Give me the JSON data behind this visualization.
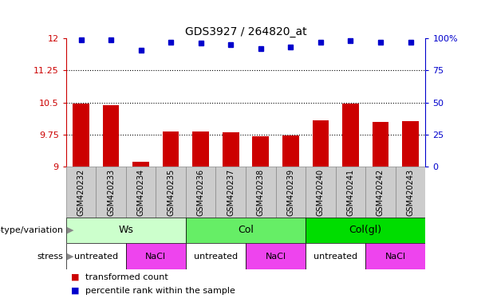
{
  "title": "GDS3927 / 264820_at",
  "samples": [
    "GSM420232",
    "GSM420233",
    "GSM420234",
    "GSM420235",
    "GSM420236",
    "GSM420237",
    "GSM420238",
    "GSM420239",
    "GSM420240",
    "GSM420241",
    "GSM420242",
    "GSM420243"
  ],
  "bar_values": [
    10.47,
    10.43,
    9.12,
    9.82,
    9.82,
    9.8,
    9.72,
    9.73,
    10.08,
    10.47,
    10.05,
    10.06
  ],
  "dot_values": [
    99,
    99,
    91,
    97,
    96,
    95,
    92,
    93,
    97,
    98,
    97,
    97
  ],
  "bar_color": "#cc0000",
  "dot_color": "#0000cc",
  "ylim_left": [
    9.0,
    12.0
  ],
  "ylim_right": [
    0,
    100
  ],
  "yticks_left": [
    9.0,
    9.75,
    10.5,
    11.25,
    12.0
  ],
  "yticks_right": [
    0,
    25,
    50,
    75,
    100
  ],
  "ytick_labels_left": [
    "9",
    "9.75",
    "10.5",
    "11.25",
    "12"
  ],
  "ytick_labels_right": [
    "0",
    "25",
    "50",
    "75",
    "100%"
  ],
  "hlines": [
    9.75,
    10.5,
    11.25
  ],
  "genotype_groups": [
    {
      "label": "Ws",
      "start": 0,
      "end": 3,
      "color": "#ccffcc"
    },
    {
      "label": "Col",
      "start": 4,
      "end": 7,
      "color": "#66ee66"
    },
    {
      "label": "Col(gl)",
      "start": 8,
      "end": 11,
      "color": "#00dd00"
    }
  ],
  "stress_groups": [
    {
      "label": "untreated",
      "start": 0,
      "end": 1,
      "color": "#ffffff"
    },
    {
      "label": "NaCl",
      "start": 2,
      "end": 3,
      "color": "#ee44ee"
    },
    {
      "label": "untreated",
      "start": 4,
      "end": 5,
      "color": "#ffffff"
    },
    {
      "label": "NaCl",
      "start": 6,
      "end": 7,
      "color": "#ee44ee"
    },
    {
      "label": "untreated",
      "start": 8,
      "end": 9,
      "color": "#ffffff"
    },
    {
      "label": "NaCl",
      "start": 10,
      "end": 11,
      "color": "#ee44ee"
    }
  ],
  "legend_items": [
    {
      "label": "transformed count",
      "color": "#cc0000"
    },
    {
      "label": "percentile rank within the sample",
      "color": "#0000cc"
    }
  ],
  "row_labels": [
    "genotype/variation",
    "stress"
  ],
  "sample_box_color": "#cccccc",
  "sample_box_edge": "#888888",
  "background_color": "#ffffff"
}
